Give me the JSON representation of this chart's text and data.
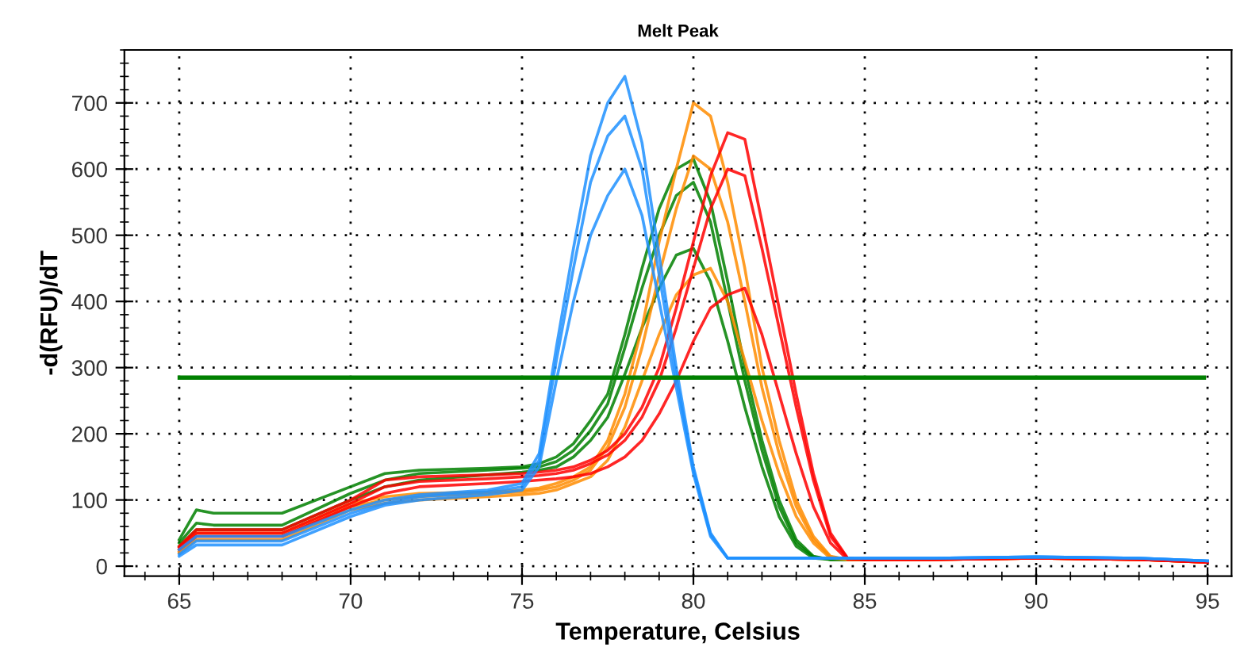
{
  "chart_data": {
    "type": "line",
    "title": "Melt Peak",
    "xlabel": "Temperature, Celsius",
    "ylabel": "-d(RFU)/dT",
    "x": [
      65,
      65.5,
      66,
      68,
      70,
      71,
      72,
      74,
      75,
      75.5,
      76,
      76.5,
      77,
      77.5,
      78,
      78.5,
      79,
      79.5,
      80,
      80.5,
      81,
      81.5,
      82,
      82.5,
      83,
      83.5,
      84,
      84.5,
      85,
      87,
      90,
      93,
      95
    ],
    "series": [
      {
        "color": "#008000",
        "values": [
          40,
          85,
          80,
          80,
          120,
          140,
          145,
          148,
          150,
          155,
          165,
          185,
          220,
          260,
          350,
          450,
          540,
          600,
          615,
          550,
          430,
          300,
          190,
          100,
          40,
          15,
          10,
          10,
          10,
          null,
          null,
          null,
          null
        ]
      },
      {
        "color": "#008000",
        "values": [
          35,
          65,
          62,
          62,
          110,
          130,
          140,
          145,
          148,
          150,
          158,
          175,
          205,
          245,
          330,
          420,
          500,
          560,
          580,
          520,
          400,
          280,
          175,
          90,
          35,
          14,
          10,
          10,
          10,
          null,
          null,
          null,
          null
        ]
      },
      {
        "color": "#008000",
        "values": [
          30,
          55,
          55,
          55,
          100,
          120,
          130,
          138,
          142,
          145,
          150,
          165,
          190,
          225,
          290,
          360,
          420,
          470,
          480,
          430,
          340,
          240,
          150,
          75,
          30,
          12,
          10,
          10,
          10,
          null,
          null,
          null,
          null
        ]
      },
      {
        "color": "#ff8c00",
        "values": [
          25,
          50,
          50,
          50,
          95,
          105,
          110,
          112,
          115,
          118,
          125,
          135,
          150,
          190,
          260,
          360,
          490,
          600,
          700,
          680,
          580,
          450,
          300,
          190,
          100,
          45,
          15,
          10,
          10,
          10,
          12,
          10,
          6
        ]
      },
      {
        "color": "#ff8c00",
        "values": [
          22,
          45,
          45,
          45,
          90,
          100,
          105,
          110,
          112,
          115,
          120,
          130,
          145,
          180,
          240,
          330,
          440,
          540,
          620,
          600,
          520,
          400,
          270,
          170,
          90,
          40,
          14,
          10,
          10,
          10,
          12,
          10,
          6
        ]
      },
      {
        "color": "#ff8c00",
        "values": [
          20,
          40,
          40,
          40,
          85,
          95,
          100,
          105,
          108,
          110,
          115,
          125,
          135,
          160,
          210,
          280,
          350,
          410,
          440,
          450,
          400,
          310,
          220,
          140,
          75,
          35,
          12,
          10,
          10,
          10,
          12,
          10,
          6
        ]
      },
      {
        "color": "#ff0000",
        "values": [
          30,
          55,
          55,
          55,
          100,
          130,
          135,
          138,
          140,
          142,
          145,
          150,
          160,
          175,
          200,
          240,
          300,
          390,
          490,
          590,
          655,
          645,
          520,
          390,
          260,
          140,
          50,
          12,
          10,
          10,
          12,
          10,
          6
        ]
      },
      {
        "color": "#ff0000",
        "values": [
          28,
          50,
          50,
          50,
          95,
          120,
          128,
          132,
          135,
          137,
          140,
          145,
          155,
          168,
          190,
          225,
          280,
          360,
          450,
          540,
          600,
          590,
          480,
          360,
          240,
          130,
          45,
          12,
          10,
          10,
          12,
          10,
          6
        ]
      },
      {
        "color": "#ff0000",
        "values": [
          25,
          45,
          45,
          45,
          90,
          110,
          120,
          125,
          128,
          130,
          132,
          135,
          140,
          150,
          165,
          190,
          230,
          280,
          340,
          390,
          410,
          420,
          350,
          260,
          170,
          90,
          35,
          10,
          10,
          10,
          12,
          10,
          6
        ]
      },
      {
        "color": "#1e90ff",
        "values": [
          25,
          45,
          45,
          45,
          85,
          100,
          108,
          115,
          125,
          170,
          330,
          480,
          620,
          700,
          740,
          640,
          470,
          300,
          150,
          50,
          12,
          12,
          12,
          12,
          12,
          12,
          12,
          12,
          12,
          12,
          14,
          12,
          8
        ]
      },
      {
        "color": "#1e90ff",
        "values": [
          18,
          38,
          38,
          38,
          80,
          95,
          105,
          112,
          120,
          160,
          310,
          450,
          580,
          650,
          680,
          600,
          440,
          285,
          145,
          48,
          12,
          12,
          12,
          12,
          12,
          12,
          12,
          12,
          12,
          12,
          14,
          12,
          8
        ]
      },
      {
        "color": "#1e90ff",
        "values": [
          15,
          32,
          32,
          32,
          75,
          92,
          100,
          108,
          115,
          150,
          280,
          400,
          500,
          560,
          600,
          530,
          400,
          270,
          140,
          45,
          12,
          12,
          12,
          12,
          12,
          12,
          12,
          12,
          12,
          12,
          14,
          12,
          8
        ]
      }
    ],
    "ref_lines": [
      {
        "axis": "y",
        "value": 285,
        "color": "#008000",
        "line_style": "solid"
      }
    ],
    "xlim": [
      63.4,
      95.7
    ],
    "ylim": [
      -15,
      780
    ],
    "xticks": [
      65,
      70,
      75,
      80,
      85,
      90,
      95
    ],
    "yticks": [
      0,
      100,
      200,
      300,
      400,
      500,
      600,
      700
    ],
    "grid": true,
    "line_style": "solid",
    "marker": "none"
  }
}
